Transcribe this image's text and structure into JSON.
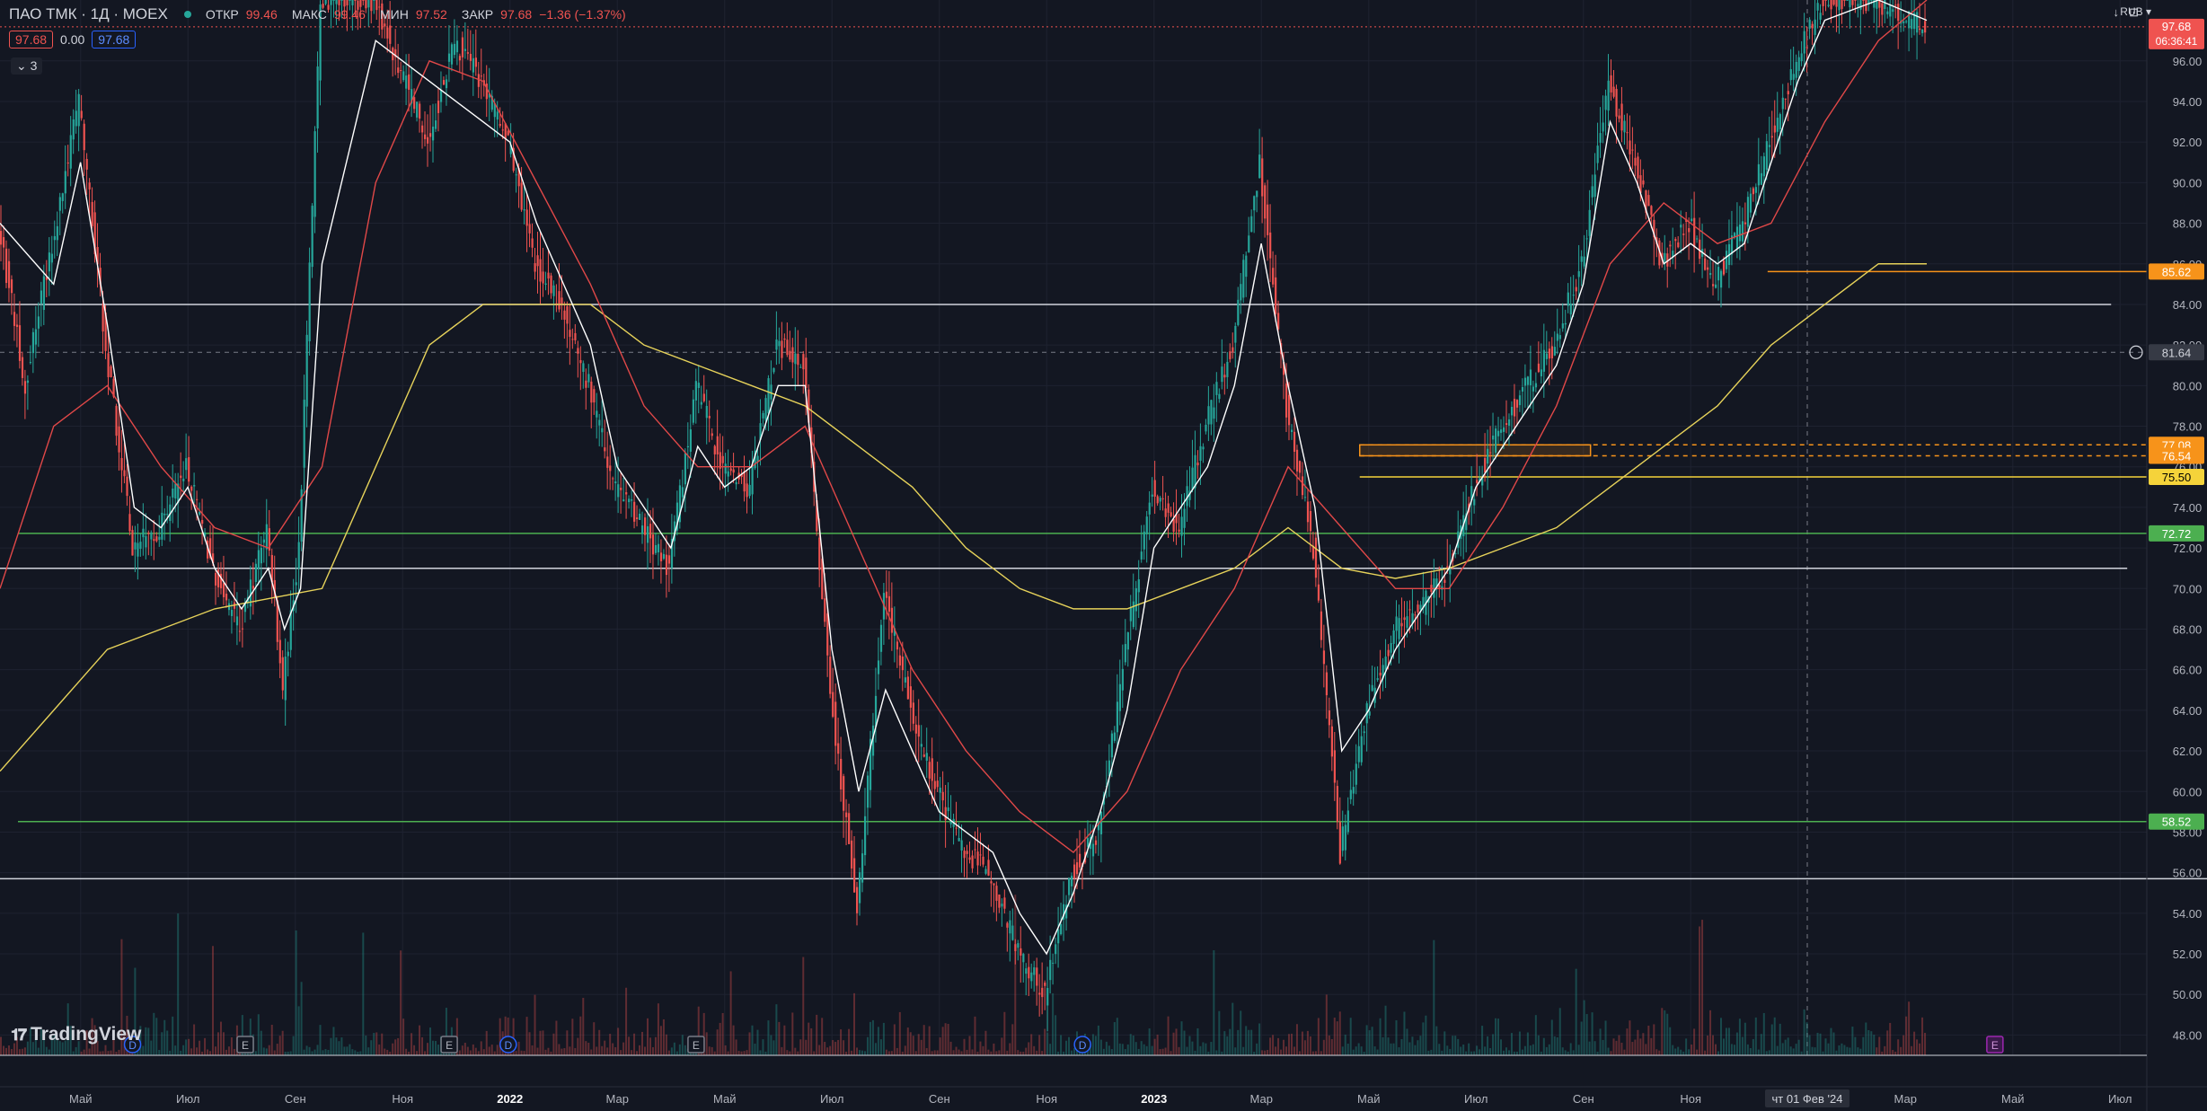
{
  "legend": {
    "symbol": "ПАО ТМК · 1Д · MOEX",
    "open_label": "ОТКР",
    "open": "99.46",
    "high_label": "МАКС",
    "high": "99.46",
    "low_label": "МИН",
    "low": "97.52",
    "close_label": "ЗАКР",
    "close": "97.68",
    "change": "−1.36 (−1.37%)",
    "bid": "97.68",
    "spread": "0.00",
    "ask": "97.68",
    "indicators_count": "3"
  },
  "currency": "RUB",
  "watermark": "TradingView",
  "crosshair_date": "чт 01 Фев '24",
  "countdown": "06:36:41",
  "colors": {
    "background": "#131722",
    "up": "#26a69a",
    "down": "#ef5350",
    "ma_fast": "#ffffff",
    "ma_mid": "#e04848",
    "ma_slow": "#e6d25a",
    "green_level": "#4caf50",
    "orange_level": "#f7931a",
    "yellow_level": "#f5d33a"
  },
  "chart_data": {
    "type": "line",
    "y_range": [
      47,
      99
    ],
    "y_ticks": [
      "96.00",
      "94.00",
      "92.00",
      "90.00",
      "88.00",
      "86.00",
      "84.00",
      "82.00",
      "80.00",
      "78.00",
      "76.00",
      "74.00",
      "72.00",
      "70.00",
      "68.00",
      "66.00",
      "64.00",
      "62.00",
      "60.00",
      "58.00",
      "56.00",
      "54.00",
      "52.00",
      "50.00",
      "48.00"
    ],
    "x_ticks": [
      "Май",
      "Июл",
      "Сен",
      "Ноя",
      "2022",
      "Мар",
      "Май",
      "Июл",
      "Сен",
      "Ноя",
      "2023",
      "Мар",
      "Май",
      "Июл",
      "Сен",
      "Ноя",
      "2024",
      "Мар",
      "Май",
      "Июл"
    ],
    "x_tick_bold": [
      "2022",
      "2023",
      "2024"
    ],
    "price_path": [
      [
        0,
        88
      ],
      [
        0.5,
        80
      ],
      [
        1.5,
        94
      ],
      [
        2,
        82
      ],
      [
        2.5,
        72
      ],
      [
        3,
        73
      ],
      [
        3.5,
        76
      ],
      [
        4,
        71
      ],
      [
        4.5,
        68
      ],
      [
        5,
        73
      ],
      [
        5.3,
        65
      ],
      [
        5.6,
        72
      ],
      [
        6,
        99
      ],
      [
        7,
        99
      ],
      [
        8,
        92
      ],
      [
        8.5,
        97
      ],
      [
        9,
        95
      ],
      [
        9.5,
        92
      ],
      [
        10,
        86
      ],
      [
        10.5,
        84
      ],
      [
        11,
        80
      ],
      [
        11.5,
        75
      ],
      [
        12,
        73
      ],
      [
        12.5,
        71
      ],
      [
        13,
        80
      ],
      [
        13.5,
        76
      ],
      [
        14,
        75
      ],
      [
        14.5,
        82
      ],
      [
        15,
        81
      ],
      [
        15.5,
        65
      ],
      [
        16,
        54
      ],
      [
        16.5,
        70
      ],
      [
        17,
        64
      ],
      [
        17.5,
        60
      ],
      [
        18,
        57
      ],
      [
        18.5,
        56
      ],
      [
        19,
        52
      ],
      [
        19.5,
        50
      ],
      [
        20,
        56
      ],
      [
        20.5,
        58
      ],
      [
        21,
        67
      ],
      [
        21.5,
        75
      ],
      [
        22,
        73
      ],
      [
        22.5,
        78
      ],
      [
        23,
        82
      ],
      [
        23.5,
        91
      ],
      [
        24,
        79
      ],
      [
        24.5,
        72
      ],
      [
        25,
        57
      ],
      [
        25.5,
        64
      ],
      [
        26,
        68
      ],
      [
        26.5,
        69
      ],
      [
        27,
        71
      ],
      [
        27.5,
        75
      ],
      [
        28,
        78
      ],
      [
        28.5,
        80
      ],
      [
        29,
        82
      ],
      [
        29.5,
        86
      ],
      [
        30,
        95
      ],
      [
        30.5,
        91
      ],
      [
        31,
        86
      ],
      [
        31.5,
        88
      ],
      [
        32,
        85
      ],
      [
        32.5,
        88
      ],
      [
        33,
        92
      ],
      [
        33.5,
        96
      ],
      [
        34,
        99
      ],
      [
        35,
        99
      ],
      [
        35.6,
        98
      ],
      [
        35.9,
        97.68
      ]
    ],
    "ma_fast_path": [
      [
        0,
        88
      ],
      [
        1,
        85
      ],
      [
        1.5,
        91
      ],
      [
        2,
        83
      ],
      [
        2.5,
        74
      ],
      [
        3,
        73
      ],
      [
        3.5,
        75
      ],
      [
        4,
        71
      ],
      [
        4.5,
        69
      ],
      [
        5,
        71
      ],
      [
        5.3,
        68
      ],
      [
        5.6,
        70
      ],
      [
        6,
        86
      ],
      [
        7,
        97
      ],
      [
        8,
        95
      ],
      [
        9,
        93
      ],
      [
        9.5,
        92
      ],
      [
        10,
        88
      ],
      [
        10.5,
        85
      ],
      [
        11,
        82
      ],
      [
        11.5,
        76
      ],
      [
        12,
        74
      ],
      [
        12.5,
        72
      ],
      [
        13,
        77
      ],
      [
        13.5,
        75
      ],
      [
        14,
        76
      ],
      [
        14.5,
        80
      ],
      [
        15,
        80
      ],
      [
        15.5,
        67
      ],
      [
        16,
        60
      ],
      [
        16.5,
        65
      ],
      [
        17,
        62
      ],
      [
        17.5,
        59
      ],
      [
        18,
        58
      ],
      [
        18.5,
        57
      ],
      [
        19,
        54
      ],
      [
        19.5,
        52
      ],
      [
        20,
        55
      ],
      [
        20.5,
        59
      ],
      [
        21,
        64
      ],
      [
        21.5,
        72
      ],
      [
        22,
        74
      ],
      [
        22.5,
        76
      ],
      [
        23,
        80
      ],
      [
        23.5,
        87
      ],
      [
        24,
        80
      ],
      [
        24.5,
        74
      ],
      [
        25,
        62
      ],
      [
        25.5,
        64
      ],
      [
        26,
        67
      ],
      [
        26.5,
        69
      ],
      [
        27,
        71
      ],
      [
        27.5,
        75
      ],
      [
        28,
        77
      ],
      [
        28.5,
        79
      ],
      [
        29,
        81
      ],
      [
        29.5,
        85
      ],
      [
        30,
        93
      ],
      [
        30.5,
        90
      ],
      [
        31,
        86
      ],
      [
        31.5,
        87
      ],
      [
        32,
        86
      ],
      [
        32.5,
        87
      ],
      [
        33,
        91
      ],
      [
        33.5,
        95
      ],
      [
        34,
        98
      ],
      [
        35,
        99
      ],
      [
        35.9,
        98
      ]
    ],
    "ma_mid_path": [
      [
        0,
        70
      ],
      [
        1,
        78
      ],
      [
        2,
        80
      ],
      [
        3,
        76
      ],
      [
        4,
        73
      ],
      [
        5,
        72
      ],
      [
        6,
        76
      ],
      [
        7,
        90
      ],
      [
        8,
        96
      ],
      [
        9,
        95
      ],
      [
        10,
        90
      ],
      [
        11,
        85
      ],
      [
        12,
        79
      ],
      [
        13,
        76
      ],
      [
        14,
        76
      ],
      [
        15,
        78
      ],
      [
        16,
        72
      ],
      [
        17,
        66
      ],
      [
        18,
        62
      ],
      [
        19,
        59
      ],
      [
        20,
        57
      ],
      [
        21,
        60
      ],
      [
        22,
        66
      ],
      [
        23,
        70
      ],
      [
        24,
        76
      ],
      [
        25,
        73
      ],
      [
        26,
        70
      ],
      [
        27,
        70
      ],
      [
        28,
        74
      ],
      [
        29,
        79
      ],
      [
        30,
        86
      ],
      [
        31,
        89
      ],
      [
        32,
        87
      ],
      [
        33,
        88
      ],
      [
        34,
        93
      ],
      [
        35,
        97
      ],
      [
        35.9,
        99
      ]
    ],
    "ma_slow_path": [
      [
        0,
        61
      ],
      [
        1,
        64
      ],
      [
        2,
        67
      ],
      [
        3,
        68
      ],
      [
        4,
        69
      ],
      [
        5,
        69.5
      ],
      [
        6,
        70
      ],
      [
        7,
        76
      ],
      [
        8,
        82
      ],
      [
        9,
        84
      ],
      [
        10,
        84
      ],
      [
        11,
        84
      ],
      [
        12,
        82
      ],
      [
        13,
        81
      ],
      [
        14,
        80
      ],
      [
        15,
        79
      ],
      [
        16,
        77
      ],
      [
        17,
        75
      ],
      [
        18,
        72
      ],
      [
        19,
        70
      ],
      [
        20,
        69
      ],
      [
        21,
        69
      ],
      [
        22,
        70
      ],
      [
        23,
        71
      ],
      [
        24,
        73
      ],
      [
        25,
        71
      ],
      [
        26,
        70.5
      ],
      [
        27,
        71
      ],
      [
        28,
        72
      ],
      [
        29,
        73
      ],
      [
        30,
        75
      ],
      [
        31,
        77
      ],
      [
        32,
        79
      ],
      [
        33,
        82
      ],
      [
        34,
        84
      ],
      [
        35,
        86
      ],
      [
        35.9,
        86
      ]
    ],
    "horizontal_levels": [
      {
        "value": 85.62,
        "label": "85.62",
        "kind": "orange",
        "from": 32.6
      },
      {
        "value": 84.0,
        "label": "",
        "kind": "white",
        "from": 0,
        "to": 39
      },
      {
        "value": 81.64,
        "label": "81.64",
        "kind": "crosshair"
      },
      {
        "value": 77.08,
        "label": "77.08",
        "kind": "orange_dashed",
        "from": 25
      },
      {
        "value": 76.54,
        "label": "76.54",
        "kind": "orange_dashed",
        "from": 25
      },
      {
        "value": 75.5,
        "label": "75.50",
        "kind": "yellow",
        "from": 25
      },
      {
        "value": 72.72,
        "label": "72.72",
        "kind": "green",
        "from": 0
      },
      {
        "value": 71.0,
        "label": "",
        "kind": "white",
        "from": 0,
        "to": 39.3
      },
      {
        "value": 58.52,
        "label": "58.52",
        "kind": "green",
        "from": 0
      },
      {
        "value": 55.7,
        "label": "",
        "kind": "white",
        "from": 0,
        "to": 44
      }
    ],
    "zone": {
      "from": 25,
      "to": 29.3,
      "top": 77.08,
      "bottom": 76.54
    },
    "last_price": {
      "value": 97.68,
      "label": "97.68"
    },
    "event_markers": [
      {
        "x": 1.8,
        "label": "D",
        "kind": "dividend"
      },
      {
        "x": 3.9,
        "label": "E",
        "kind": "earnings"
      },
      {
        "x": 7.7,
        "label": "E",
        "kind": "earnings"
      },
      {
        "x": 8.8,
        "label": "D",
        "kind": "dividend"
      },
      {
        "x": 12.3,
        "label": "E",
        "kind": "earnings"
      },
      {
        "x": 19.5,
        "label": "D",
        "kind": "dividend"
      },
      {
        "x": 36.5,
        "label": "E",
        "kind": "earnings_future"
      }
    ],
    "grid": true,
    "legend_position": "top-left"
  }
}
